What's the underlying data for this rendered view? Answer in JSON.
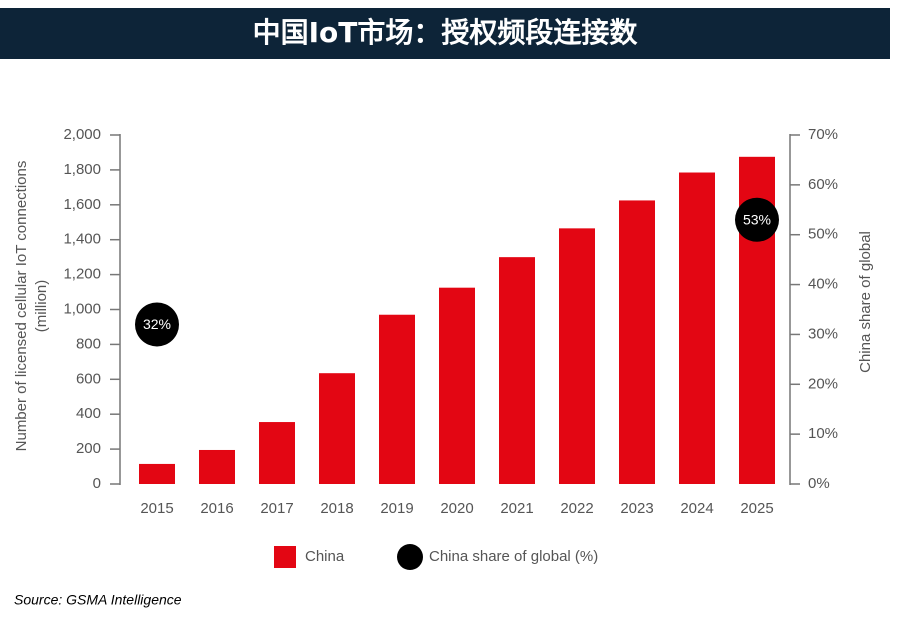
{
  "chart_data": {
    "type": "bar",
    "title": "中国IoT市场：授权频段连接数",
    "ylabel": [
      "Number of licensed cellular IoT connections",
      "(million)"
    ],
    "y2label": "China share of global",
    "source": "Source: GSMA Intelligence",
    "categories": [
      "2015",
      "2016",
      "2017",
      "2018",
      "2019",
      "2020",
      "2021",
      "2022",
      "2023",
      "2024",
      "2025"
    ],
    "series": [
      {
        "name": "China",
        "color": "#e30613",
        "values": [
          115,
          195,
          355,
          635,
          970,
          1125,
          1300,
          1465,
          1625,
          1785,
          1875
        ]
      },
      {
        "name": "China share of global (%)",
        "color": "#000000",
        "axis": "y2",
        "values": [
          32,
          null,
          null,
          null,
          null,
          null,
          null,
          null,
          null,
          null,
          53
        ],
        "value_labels": [
          "32%",
          null,
          null,
          null,
          null,
          null,
          null,
          null,
          null,
          null,
          "53%"
        ]
      }
    ],
    "ylim": [
      0,
      2000
    ],
    "yticks": [
      0,
      200,
      400,
      600,
      800,
      {
        "value": 1000,
        "label": "1,000"
      },
      {
        "value": 1200,
        "label": "1,200"
      },
      {
        "value": 1400,
        "label": "1,400"
      },
      {
        "value": 1600,
        "label": "1,600"
      },
      {
        "value": 1800,
        "label": "1,800"
      },
      {
        "value": 2000,
        "label": "2,000"
      }
    ],
    "y2lim": [
      0,
      70
    ],
    "y2ticks": [
      {
        "value": 0,
        "label": "0%"
      },
      {
        "value": 10,
        "label": "10%"
      },
      {
        "value": 20,
        "label": "20%"
      },
      {
        "value": 30,
        "label": "30%"
      },
      {
        "value": 40,
        "label": "40%"
      },
      {
        "value": 50,
        "label": "50%"
      },
      {
        "value": 60,
        "label": "60%"
      },
      {
        "value": 70,
        "label": "70%"
      }
    ]
  }
}
